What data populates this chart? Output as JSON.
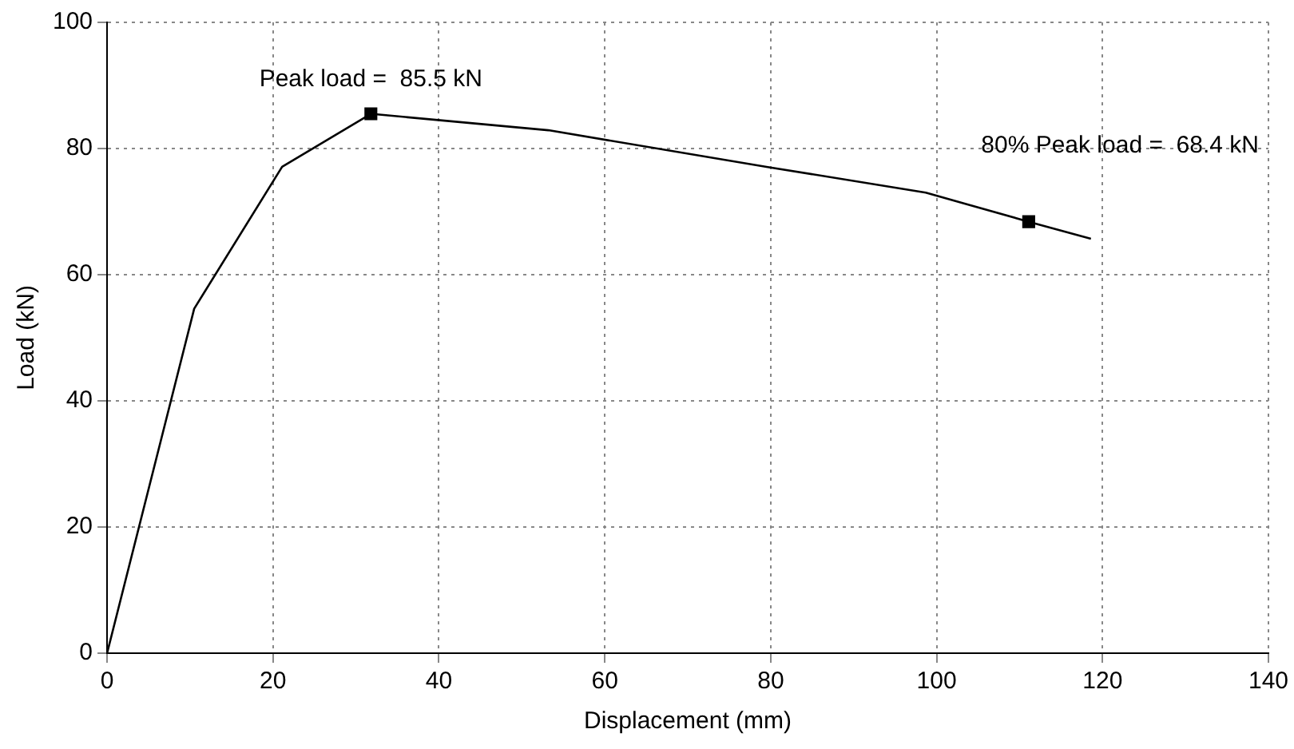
{
  "chart_data": {
    "type": "line",
    "xlabel": "Displacement (mm)",
    "ylabel": "Load (kN)",
    "series": [
      {
        "color": "#000000",
        "marker": "none",
        "x": [
          0,
          10.5,
          21.1,
          31.8,
          53.2,
          79.5,
          98.7,
          111.1,
          118.6
        ],
        "values": [
          0,
          54.6,
          77.1,
          85.5,
          82.9,
          77.1,
          73.0,
          68.4,
          65.7
        ]
      },
      {
        "type": "scatter",
        "color": "#000000",
        "marker": "square",
        "x": [
          31.8,
          111.1
        ],
        "values": [
          85.5,
          68.4
        ]
      }
    ],
    "xlim": [
      0,
      140
    ],
    "xticks": [
      0,
      20,
      40,
      60,
      80,
      100,
      120,
      140
    ],
    "ylim": [
      0,
      100
    ],
    "yticks": [
      0,
      20,
      40,
      60,
      80,
      100
    ],
    "grid": true,
    "legend": false,
    "annotations": [
      {
        "text": "Peak load =  85.5 kN",
        "x": 31.8,
        "y": 85.5
      },
      {
        "text": "80% Peak load =  68.4 kN",
        "x": 111.1,
        "y": 68.4
      }
    ]
  }
}
